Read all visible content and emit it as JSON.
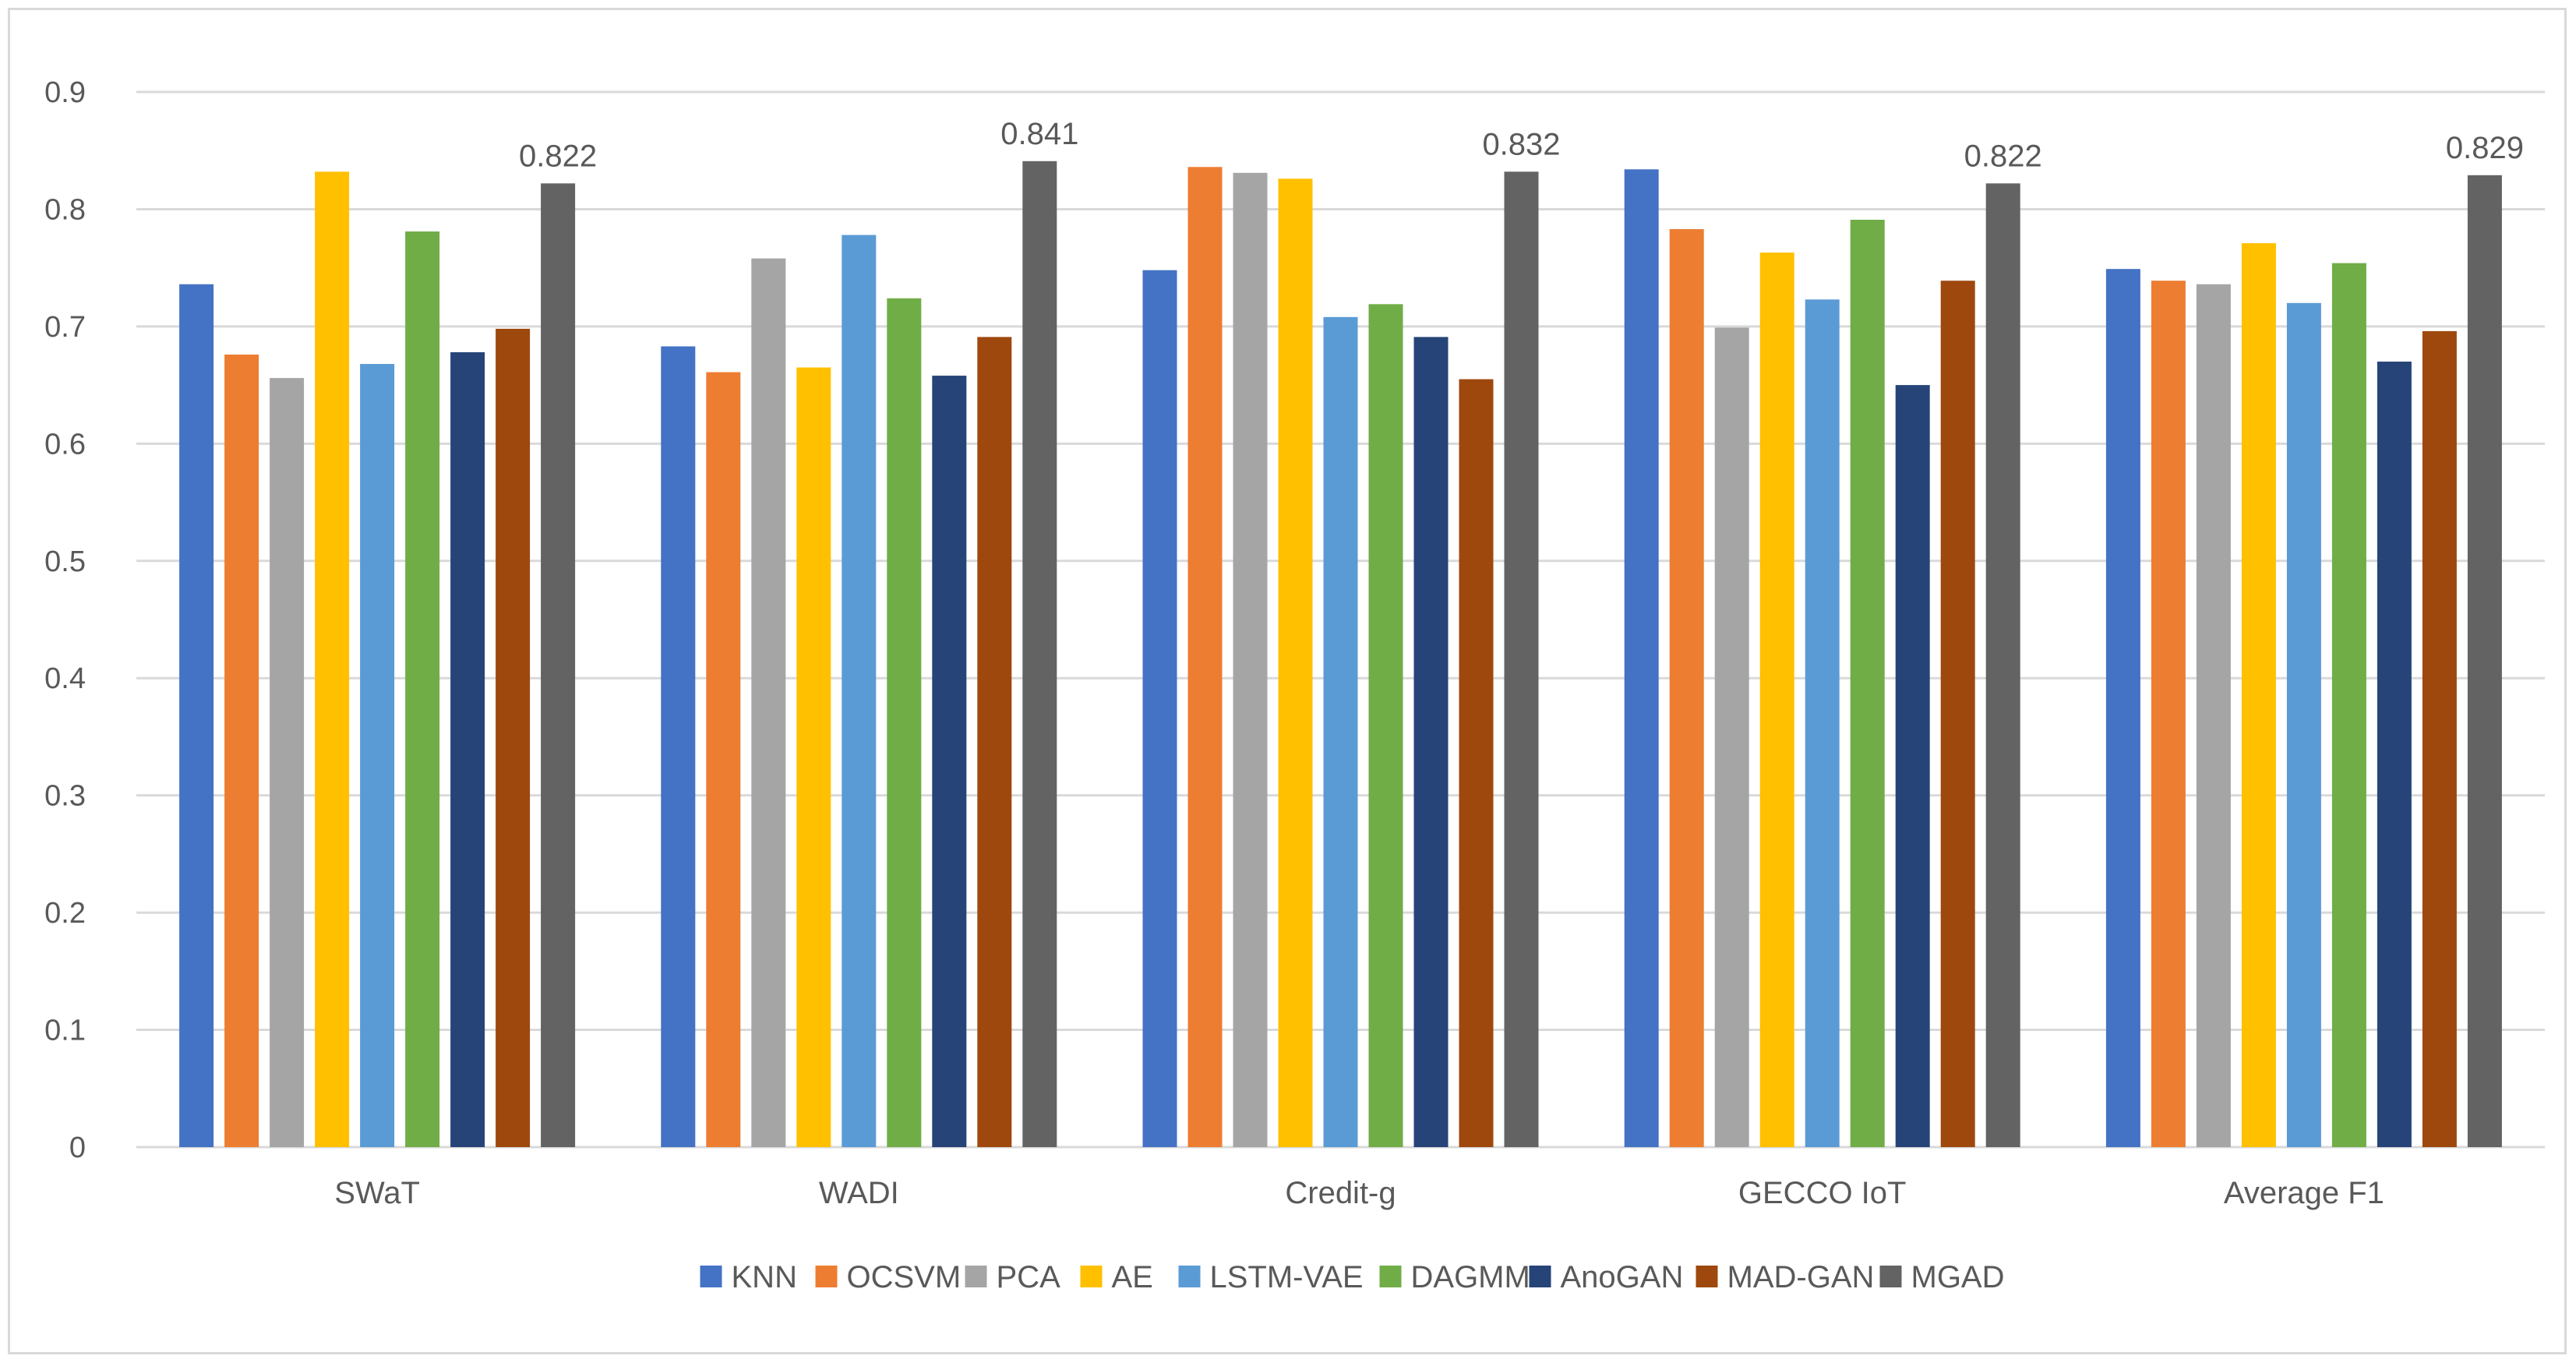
{
  "chart_data": {
    "type": "bar",
    "title": "",
    "xlabel": "",
    "ylabel": "",
    "ylim": [
      0,
      0.9
    ],
    "yticks": [
      "0",
      "0.1",
      "0.2",
      "0.3",
      "0.4",
      "0.5",
      "0.6",
      "0.7",
      "0.8",
      "0.9"
    ],
    "grid": true,
    "legend": "bottom",
    "categories": [
      "SWaT",
      "WADI",
      "Credit-g",
      "GECCO IoT",
      "Average F1"
    ],
    "series": [
      {
        "name": "KNN",
        "color": "#4472C4",
        "values": [
          0.736,
          0.683,
          0.748,
          0.834,
          0.749
        ]
      },
      {
        "name": "OCSVM",
        "color": "#ED7D31",
        "values": [
          0.676,
          0.661,
          0.836,
          0.783,
          0.739
        ]
      },
      {
        "name": "PCA",
        "color": "#A5A5A5",
        "values": [
          0.656,
          0.758,
          0.831,
          0.699,
          0.736
        ]
      },
      {
        "name": "AE",
        "color": "#FFC000",
        "values": [
          0.832,
          0.665,
          0.826,
          0.763,
          0.771
        ]
      },
      {
        "name": "LSTM-VAE",
        "color": "#5B9BD5",
        "values": [
          0.668,
          0.778,
          0.708,
          0.723,
          0.72
        ]
      },
      {
        "name": "DAGMM",
        "color": "#70AD47",
        "values": [
          0.781,
          0.724,
          0.719,
          0.791,
          0.754
        ]
      },
      {
        "name": "AnoGAN",
        "color": "#264478",
        "values": [
          0.678,
          0.658,
          0.691,
          0.65,
          0.67
        ]
      },
      {
        "name": "MAD-GAN",
        "color": "#9E480E",
        "values": [
          0.698,
          0.691,
          0.655,
          0.739,
          0.696
        ]
      },
      {
        "name": "MGAD",
        "color": "#636363",
        "values": [
          0.822,
          0.841,
          0.832,
          0.822,
          0.829
        ]
      }
    ],
    "data_labels": {
      "series": "MGAD",
      "labels": [
        "0.822",
        "0.841",
        "0.832",
        "0.822",
        "0.829"
      ]
    }
  }
}
